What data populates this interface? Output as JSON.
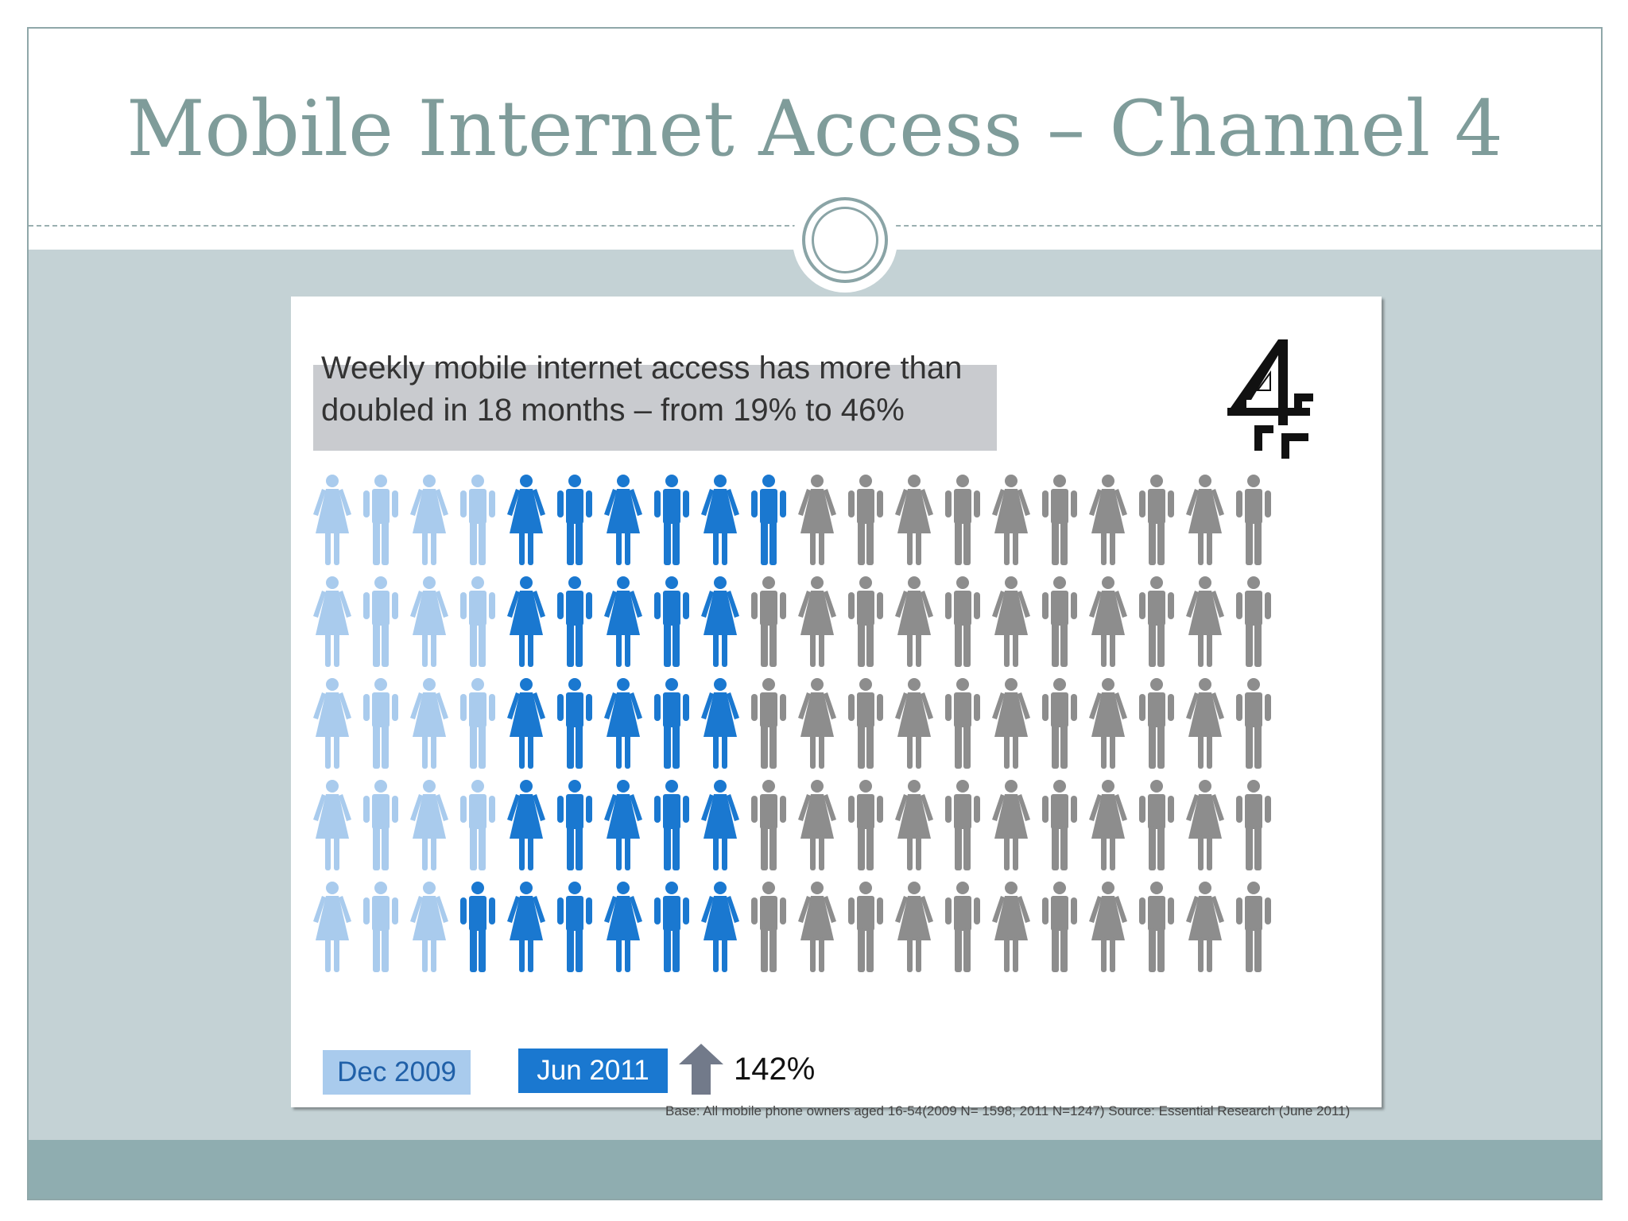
{
  "slide": {
    "title": "Mobile Internet Access – Channel 4"
  },
  "chart_data": {
    "type": "pictogram",
    "title": "Weekly mobile internet access has more than doubled in 18 months – from 19% to 46%",
    "total_icons": 100,
    "rows": 5,
    "columns": 20,
    "series": [
      {
        "name": "Dec 2009",
        "value": 19,
        "color": "#a9cbed"
      },
      {
        "name": "Jun 2011",
        "value": 27,
        "color": "#1a78d0"
      }
    ],
    "remainder_color": "#8d8d8d",
    "row_counts": [
      {
        "dec2009": 4,
        "jun2011": 6
      },
      {
        "dec2009": 4,
        "jun2011": 5
      },
      {
        "dec2009": 4,
        "jun2011": 5
      },
      {
        "dec2009": 4,
        "jun2011": 5
      },
      {
        "dec2009": 3,
        "jun2011": 6
      }
    ],
    "change_label": "142%",
    "legend_placement": "bottom-left"
  },
  "legend": {
    "dec": "Dec 2009",
    "jun": "Jun 2011"
  },
  "source_note": "Base: All mobile phone owners aged 16-54(2009 N= 1598; 2011 N=1247) Source: Essential Research (June 2011)",
  "icons": {
    "logo": "channel-4-logo-icon",
    "change": "up-arrow-icon"
  }
}
